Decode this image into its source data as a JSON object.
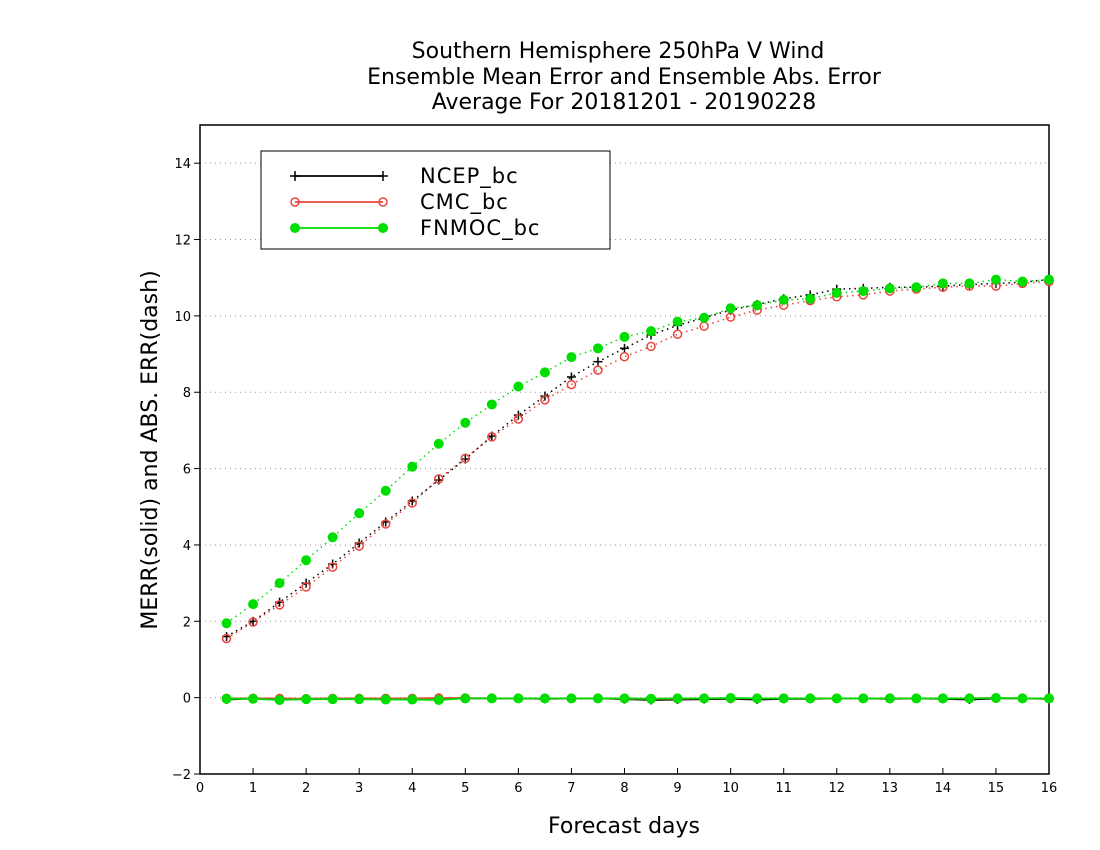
{
  "chart_data": {
    "type": "line",
    "title_lines": [
      "Southern Hemisphere 250hPa V Wind",
      "Ensemble Mean Error and Ensemble Abs. Error",
      "Average For 20181201 - 20190228"
    ],
    "xlabel": "Forecast days",
    "ylabel": "MERR(solid) and ABS. ERR(dash)",
    "xlim": [
      0,
      16
    ],
    "ylim": [
      -2,
      15
    ],
    "x_ticks": [
      0,
      1,
      2,
      3,
      4,
      5,
      6,
      7,
      8,
      9,
      10,
      11,
      12,
      13,
      14,
      15,
      16
    ],
    "y_ticks": [
      -2,
      0,
      2,
      4,
      6,
      8,
      10,
      12,
      14
    ],
    "grid": "horizontal dotted",
    "legend_position": "top-left",
    "x": [
      0.5,
      1,
      1.5,
      2,
      2.5,
      3,
      3.5,
      4,
      4.5,
      5,
      5.5,
      6,
      6.5,
      7,
      7.5,
      8,
      8.5,
      9,
      9.5,
      10,
      10.5,
      11,
      11.5,
      12,
      12.5,
      13,
      13.5,
      14,
      14.5,
      15,
      15.5,
      16
    ],
    "series": [
      {
        "name": "NCEP_bc",
        "color": "#000000",
        "marker": "plus",
        "abs_err": [
          1.6,
          2.0,
          2.5,
          3.0,
          3.5,
          4.05,
          4.6,
          5.15,
          5.7,
          6.25,
          6.85,
          7.4,
          7.9,
          8.4,
          8.8,
          9.15,
          9.5,
          9.75,
          9.95,
          10.15,
          10.3,
          10.45,
          10.55,
          10.7,
          10.72,
          10.75,
          10.75,
          10.78,
          10.82,
          10.85,
          10.88,
          10.95
        ],
        "mean_err": [
          -0.05,
          -0.02,
          -0.05,
          -0.03,
          -0.03,
          -0.02,
          -0.03,
          -0.03,
          -0.02,
          -0.02,
          -0.02,
          -0.02,
          -0.03,
          -0.02,
          -0.02,
          -0.04,
          -0.06,
          -0.05,
          -0.04,
          -0.03,
          -0.05,
          -0.03,
          -0.03,
          -0.02,
          -0.02,
          -0.03,
          -0.02,
          -0.03,
          -0.05,
          -0.02,
          -0.02,
          -0.03
        ]
      },
      {
        "name": "CMC_bc",
        "color": "#e8453c",
        "marker": "open-circle",
        "abs_err": [
          1.55,
          1.98,
          2.43,
          2.9,
          3.42,
          3.97,
          4.55,
          5.1,
          5.73,
          6.27,
          6.83,
          7.3,
          7.8,
          8.2,
          8.58,
          8.93,
          9.2,
          9.52,
          9.73,
          9.97,
          10.15,
          10.28,
          10.4,
          10.5,
          10.55,
          10.65,
          10.7,
          10.75,
          10.78,
          10.78,
          10.85,
          10.9
        ],
        "mean_err": [
          -0.02,
          -0.02,
          -0.02,
          -0.03,
          -0.02,
          -0.02,
          -0.02,
          -0.02,
          -0.01,
          -0.01,
          -0.02,
          -0.02,
          -0.02,
          -0.02,
          -0.02,
          -0.03,
          -0.03,
          -0.03,
          -0.02,
          -0.02,
          -0.02,
          -0.02,
          -0.02,
          -0.02,
          -0.02,
          -0.02,
          -0.02,
          -0.02,
          -0.02,
          -0.01,
          -0.02,
          -0.02
        ]
      },
      {
        "name": "FNMOC_bc",
        "color": "#00dd00",
        "marker": "filled-circle",
        "abs_err": [
          1.95,
          2.45,
          3.0,
          3.6,
          4.2,
          4.83,
          5.42,
          6.05,
          6.65,
          7.2,
          7.68,
          8.15,
          8.52,
          8.92,
          9.15,
          9.45,
          9.6,
          9.85,
          9.95,
          10.2,
          10.28,
          10.42,
          10.45,
          10.6,
          10.65,
          10.72,
          10.75,
          10.85,
          10.85,
          10.95,
          10.9,
          10.95
        ],
        "mean_err": [
          -0.03,
          -0.03,
          -0.06,
          -0.04,
          -0.04,
          -0.04,
          -0.05,
          -0.05,
          -0.06,
          -0.02,
          -0.02,
          -0.02,
          -0.02,
          -0.02,
          -0.02,
          -0.02,
          -0.03,
          -0.02,
          -0.02,
          -0.01,
          -0.02,
          -0.02,
          -0.02,
          -0.02,
          -0.02,
          -0.02,
          -0.02,
          -0.02,
          -0.02,
          -0.01,
          -0.02,
          -0.02
        ]
      }
    ]
  }
}
